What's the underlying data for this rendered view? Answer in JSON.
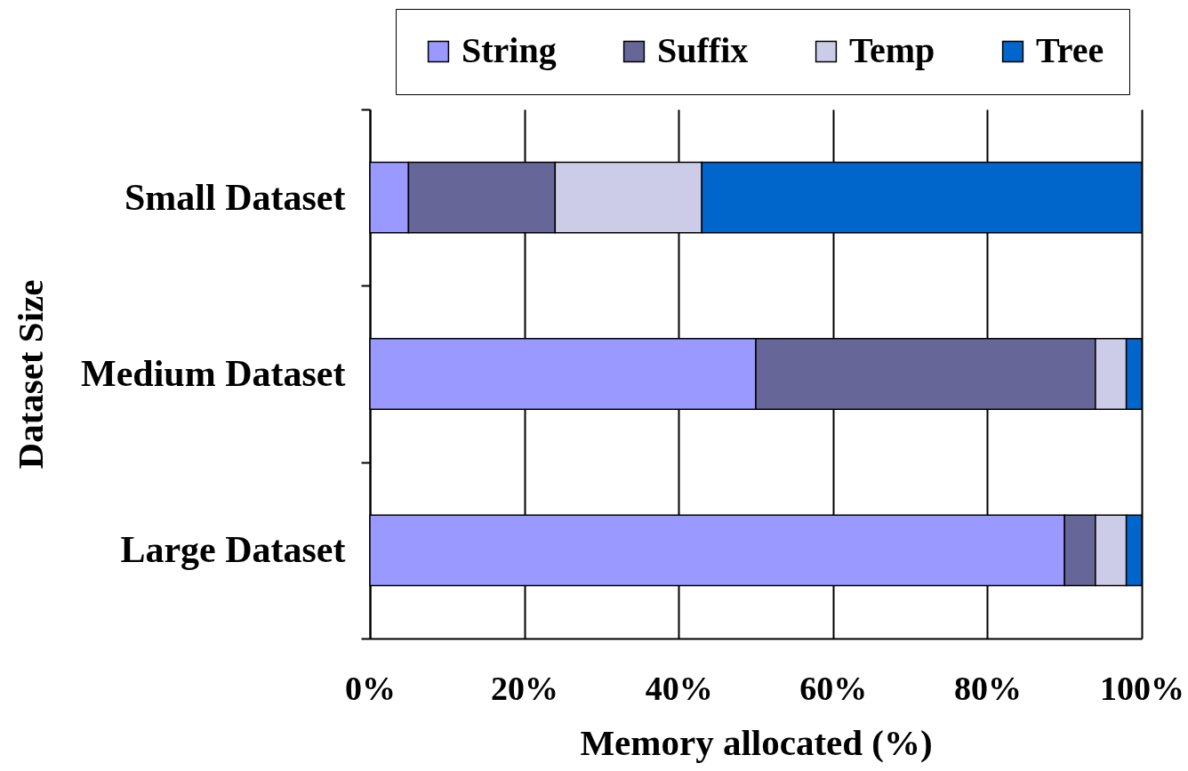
{
  "chart_data": {
    "type": "bar",
    "orientation": "horizontal",
    "stacked": true,
    "xlabel": "Memory allocated (%)",
    "ylabel": "Dataset Size",
    "categories": [
      "Small Dataset",
      "Medium Dataset",
      "Large Dataset"
    ],
    "series": [
      {
        "name": "String",
        "color": "#9999ff",
        "values": [
          5,
          50,
          90
        ]
      },
      {
        "name": "Suffix",
        "color": "#666699",
        "values": [
          19,
          44,
          4
        ]
      },
      {
        "name": "Temp",
        "color": "#cccce8",
        "values": [
          19,
          4,
          4
        ]
      },
      {
        "name": "Tree",
        "color": "#0066cc",
        "values": [
          57,
          2,
          2
        ]
      }
    ],
    "xlim": [
      0,
      100
    ],
    "xticks": [
      {
        "value": 0,
        "label": "0%"
      },
      {
        "value": 20,
        "label": "20%"
      },
      {
        "value": 40,
        "label": "40%"
      },
      {
        "value": 60,
        "label": "60%"
      },
      {
        "value": 80,
        "label": "80%"
      },
      {
        "value": 100,
        "label": "100%"
      }
    ],
    "grid": "x",
    "legend": "top"
  }
}
